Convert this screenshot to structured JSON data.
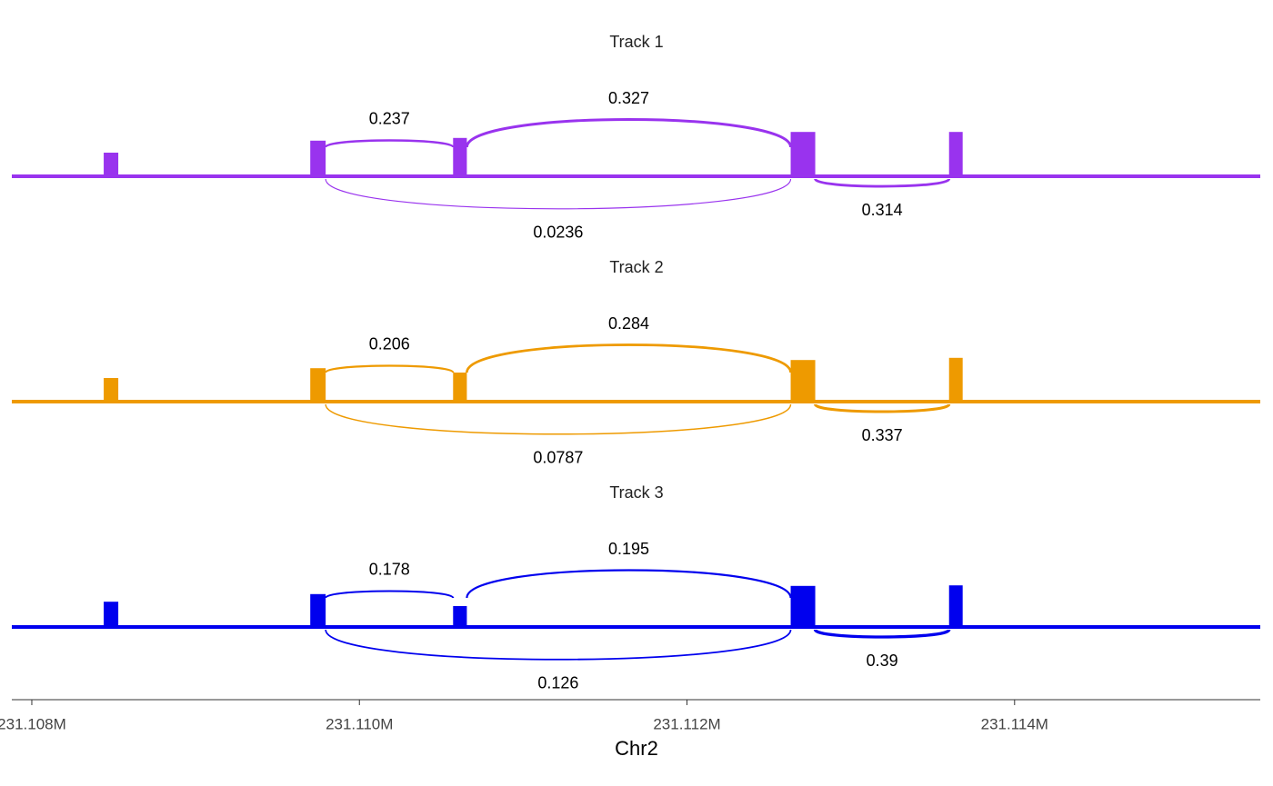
{
  "chart_data": {
    "type": "sashimi",
    "xlabel": "Chr2",
    "xlim": [
      231107878,
      231115500
    ],
    "xticks": [
      {
        "value": 231108000,
        "label": "231.108M"
      },
      {
        "value": 231110000,
        "label": "231.110M"
      },
      {
        "value": 231112000,
        "label": "231.112M"
      },
      {
        "value": 231114000,
        "label": "231.114M"
      }
    ],
    "ylim": [
      0,
      1
    ],
    "exons": [
      {
        "start": 231108439,
        "end": 231108528
      },
      {
        "start": 231109700,
        "end": 231109794
      },
      {
        "start": 231110572,
        "end": 231110656
      },
      {
        "start": 231112633,
        "end": 231112783
      },
      {
        "start": 231113600,
        "end": 231113683
      }
    ],
    "tracks": [
      {
        "title": "Track 1",
        "color": "#9933ee",
        "coverage": [
          0.45,
          0.67,
          0.72,
          0.83,
          0.83
        ],
        "junctions": [
          {
            "start": 231109794,
            "end": 231110572,
            "value": 0.237,
            "side": "above"
          },
          {
            "start": 231110656,
            "end": 231112633,
            "value": 0.327,
            "side": "above"
          },
          {
            "start": 231109794,
            "end": 231112633,
            "value": 0.0236,
            "side": "below"
          },
          {
            "start": 231112783,
            "end": 231113600,
            "value": 0.314,
            "side": "below"
          }
        ]
      },
      {
        "title": "Track 2",
        "color": "#ee9a00",
        "coverage": [
          0.45,
          0.63,
          0.55,
          0.78,
          0.82
        ],
        "junctions": [
          {
            "start": 231109794,
            "end": 231110572,
            "value": 0.206,
            "side": "above"
          },
          {
            "start": 231110656,
            "end": 231112633,
            "value": 0.284,
            "side": "above"
          },
          {
            "start": 231109794,
            "end": 231112633,
            "value": 0.0787,
            "side": "below"
          },
          {
            "start": 231112783,
            "end": 231113600,
            "value": 0.337,
            "side": "below"
          }
        ]
      },
      {
        "title": "Track 3",
        "color": "#0000ee",
        "coverage": [
          0.48,
          0.62,
          0.4,
          0.77,
          0.78
        ],
        "junctions": [
          {
            "start": 231109794,
            "end": 231110572,
            "value": 0.178,
            "side": "above"
          },
          {
            "start": 231110656,
            "end": 231112633,
            "value": 0.195,
            "side": "above"
          },
          {
            "start": 231109794,
            "end": 231112633,
            "value": 0.126,
            "side": "below"
          },
          {
            "start": 231112783,
            "end": 231113600,
            "value": 0.39,
            "side": "below"
          }
        ]
      }
    ]
  }
}
